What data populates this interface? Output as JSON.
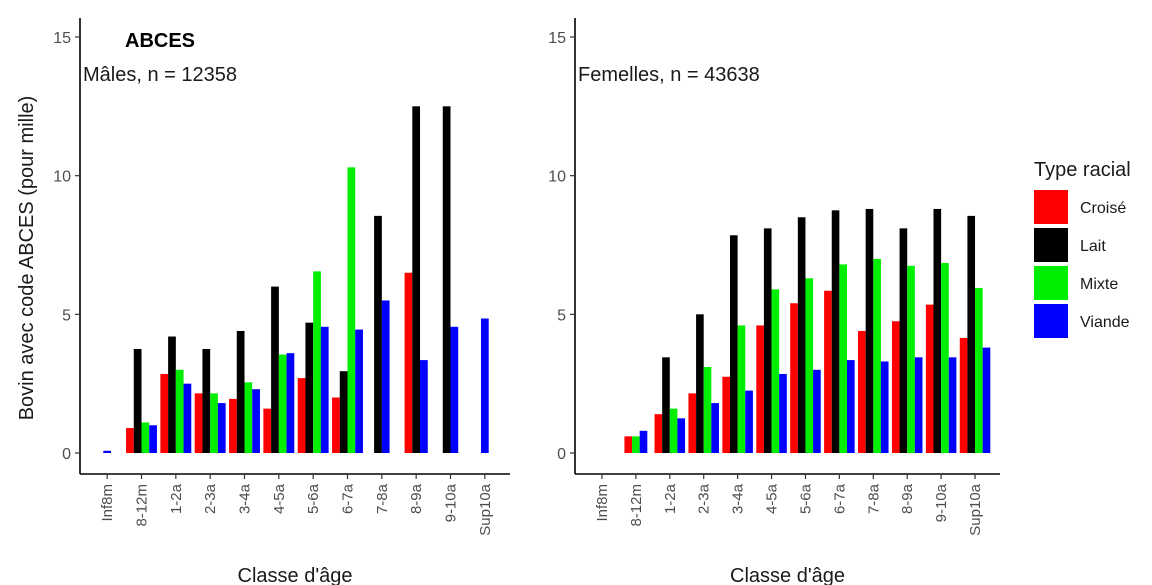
{
  "chart_data": {
    "type": "bar",
    "title": "ABCES",
    "ylabel": "Bovin avec code ABCES (pour mille)",
    "xlabel": "Classe d'âge",
    "ylim": [
      0,
      15.5
    ],
    "yticks": [
      0,
      5,
      10,
      15
    ],
    "legend": {
      "title": "Type racial",
      "position": "right"
    },
    "series_colors": {
      "Croisé": "#ff0000",
      "Lait": "#000000",
      "Mixte": "#00ee00",
      "Viande": "#0000ff"
    },
    "series_names": [
      "Croisé",
      "Lait",
      "Mixte",
      "Viande"
    ],
    "categories": [
      "Inf8m",
      "8-12m",
      "1-2a",
      "2-3a",
      "3-4a",
      "4-5a",
      "5-6a",
      "6-7a",
      "7-8a",
      "8-9a",
      "9-10a",
      "Sup10a"
    ],
    "panels": [
      {
        "label": "Mâles, n = 12358",
        "groups": [
          [
            {
              "s": "Viande",
              "v": 0.08
            }
          ],
          [
            {
              "s": "Croisé",
              "v": 0.9
            },
            {
              "s": "Lait",
              "v": 3.75
            },
            {
              "s": "Mixte",
              "v": 1.1
            },
            {
              "s": "Viande",
              "v": 1.0
            }
          ],
          [
            {
              "s": "Croisé",
              "v": 2.85
            },
            {
              "s": "Lait",
              "v": 4.2
            },
            {
              "s": "Mixte",
              "v": 3.0
            },
            {
              "s": "Viande",
              "v": 2.5
            }
          ],
          [
            {
              "s": "Croisé",
              "v": 2.15
            },
            {
              "s": "Lait",
              "v": 3.75
            },
            {
              "s": "Mixte",
              "v": 2.15
            },
            {
              "s": "Viande",
              "v": 1.8
            }
          ],
          [
            {
              "s": "Croisé",
              "v": 1.95
            },
            {
              "s": "Lait",
              "v": 4.4
            },
            {
              "s": "Mixte",
              "v": 2.55
            },
            {
              "s": "Viande",
              "v": 2.3
            }
          ],
          [
            {
              "s": "Croisé",
              "v": 1.6
            },
            {
              "s": "Lait",
              "v": 6.0
            },
            {
              "s": "Mixte",
              "v": 3.55
            },
            {
              "s": "Viande",
              "v": 3.6
            }
          ],
          [
            {
              "s": "Croisé",
              "v": 2.7
            },
            {
              "s": "Lait",
              "v": 4.7
            },
            {
              "s": "Mixte",
              "v": 6.55
            },
            {
              "s": "Viande",
              "v": 4.55
            }
          ],
          [
            {
              "s": "Croisé",
              "v": 2.0
            },
            {
              "s": "Lait",
              "v": 2.95
            },
            {
              "s": "Mixte",
              "v": 10.3
            },
            {
              "s": "Viande",
              "v": 4.45
            }
          ],
          [
            {
              "s": "Lait",
              "v": 8.55
            },
            {
              "s": "Viande",
              "v": 5.5
            }
          ],
          [
            {
              "s": "Croisé",
              "v": 6.5
            },
            {
              "s": "Lait",
              "v": 12.5
            },
            {
              "s": "Viande",
              "v": 3.35
            }
          ],
          [
            {
              "s": "Lait",
              "v": 12.5
            },
            {
              "s": "Viande",
              "v": 4.55
            }
          ],
          [
            {
              "s": "Viande",
              "v": 4.85
            }
          ]
        ]
      },
      {
        "label": "Femelles, n = 43638",
        "groups": [
          [],
          [
            {
              "s": "Croisé",
              "v": 0.6
            },
            {
              "s": "Mixte",
              "v": 0.6
            },
            {
              "s": "Viande",
              "v": 0.8
            }
          ],
          [
            {
              "s": "Croisé",
              "v": 1.4
            },
            {
              "s": "Lait",
              "v": 3.45
            },
            {
              "s": "Mixte",
              "v": 1.6
            },
            {
              "s": "Viande",
              "v": 1.25
            }
          ],
          [
            {
              "s": "Croisé",
              "v": 2.15
            },
            {
              "s": "Lait",
              "v": 5.0
            },
            {
              "s": "Mixte",
              "v": 3.1
            },
            {
              "s": "Viande",
              "v": 1.8
            }
          ],
          [
            {
              "s": "Croisé",
              "v": 2.75
            },
            {
              "s": "Lait",
              "v": 7.85
            },
            {
              "s": "Mixte",
              "v": 4.6
            },
            {
              "s": "Viande",
              "v": 2.25
            }
          ],
          [
            {
              "s": "Croisé",
              "v": 4.6
            },
            {
              "s": "Lait",
              "v": 8.1
            },
            {
              "s": "Mixte",
              "v": 5.9
            },
            {
              "s": "Viande",
              "v": 2.85
            }
          ],
          [
            {
              "s": "Croisé",
              "v": 5.4
            },
            {
              "s": "Lait",
              "v": 8.5
            },
            {
              "s": "Mixte",
              "v": 6.3
            },
            {
              "s": "Viande",
              "v": 3.0
            }
          ],
          [
            {
              "s": "Croisé",
              "v": 5.85
            },
            {
              "s": "Lait",
              "v": 8.75
            },
            {
              "s": "Mixte",
              "v": 6.8
            },
            {
              "s": "Viande",
              "v": 3.35
            }
          ],
          [
            {
              "s": "Croisé",
              "v": 4.4
            },
            {
              "s": "Lait",
              "v": 8.8
            },
            {
              "s": "Mixte",
              "v": 7.0
            },
            {
              "s": "Viande",
              "v": 3.3
            }
          ],
          [
            {
              "s": "Croisé",
              "v": 4.75
            },
            {
              "s": "Lait",
              "v": 8.1
            },
            {
              "s": "Mixte",
              "v": 6.75
            },
            {
              "s": "Viande",
              "v": 3.45
            }
          ],
          [
            {
              "s": "Croisé",
              "v": 5.35
            },
            {
              "s": "Lait",
              "v": 8.8
            },
            {
              "s": "Mixte",
              "v": 6.85
            },
            {
              "s": "Viande",
              "v": 3.45
            }
          ],
          [
            {
              "s": "Croisé",
              "v": 4.15
            },
            {
              "s": "Lait",
              "v": 8.55
            },
            {
              "s": "Mixte",
              "v": 5.95
            },
            {
              "s": "Viande",
              "v": 3.8
            }
          ]
        ]
      }
    ]
  }
}
